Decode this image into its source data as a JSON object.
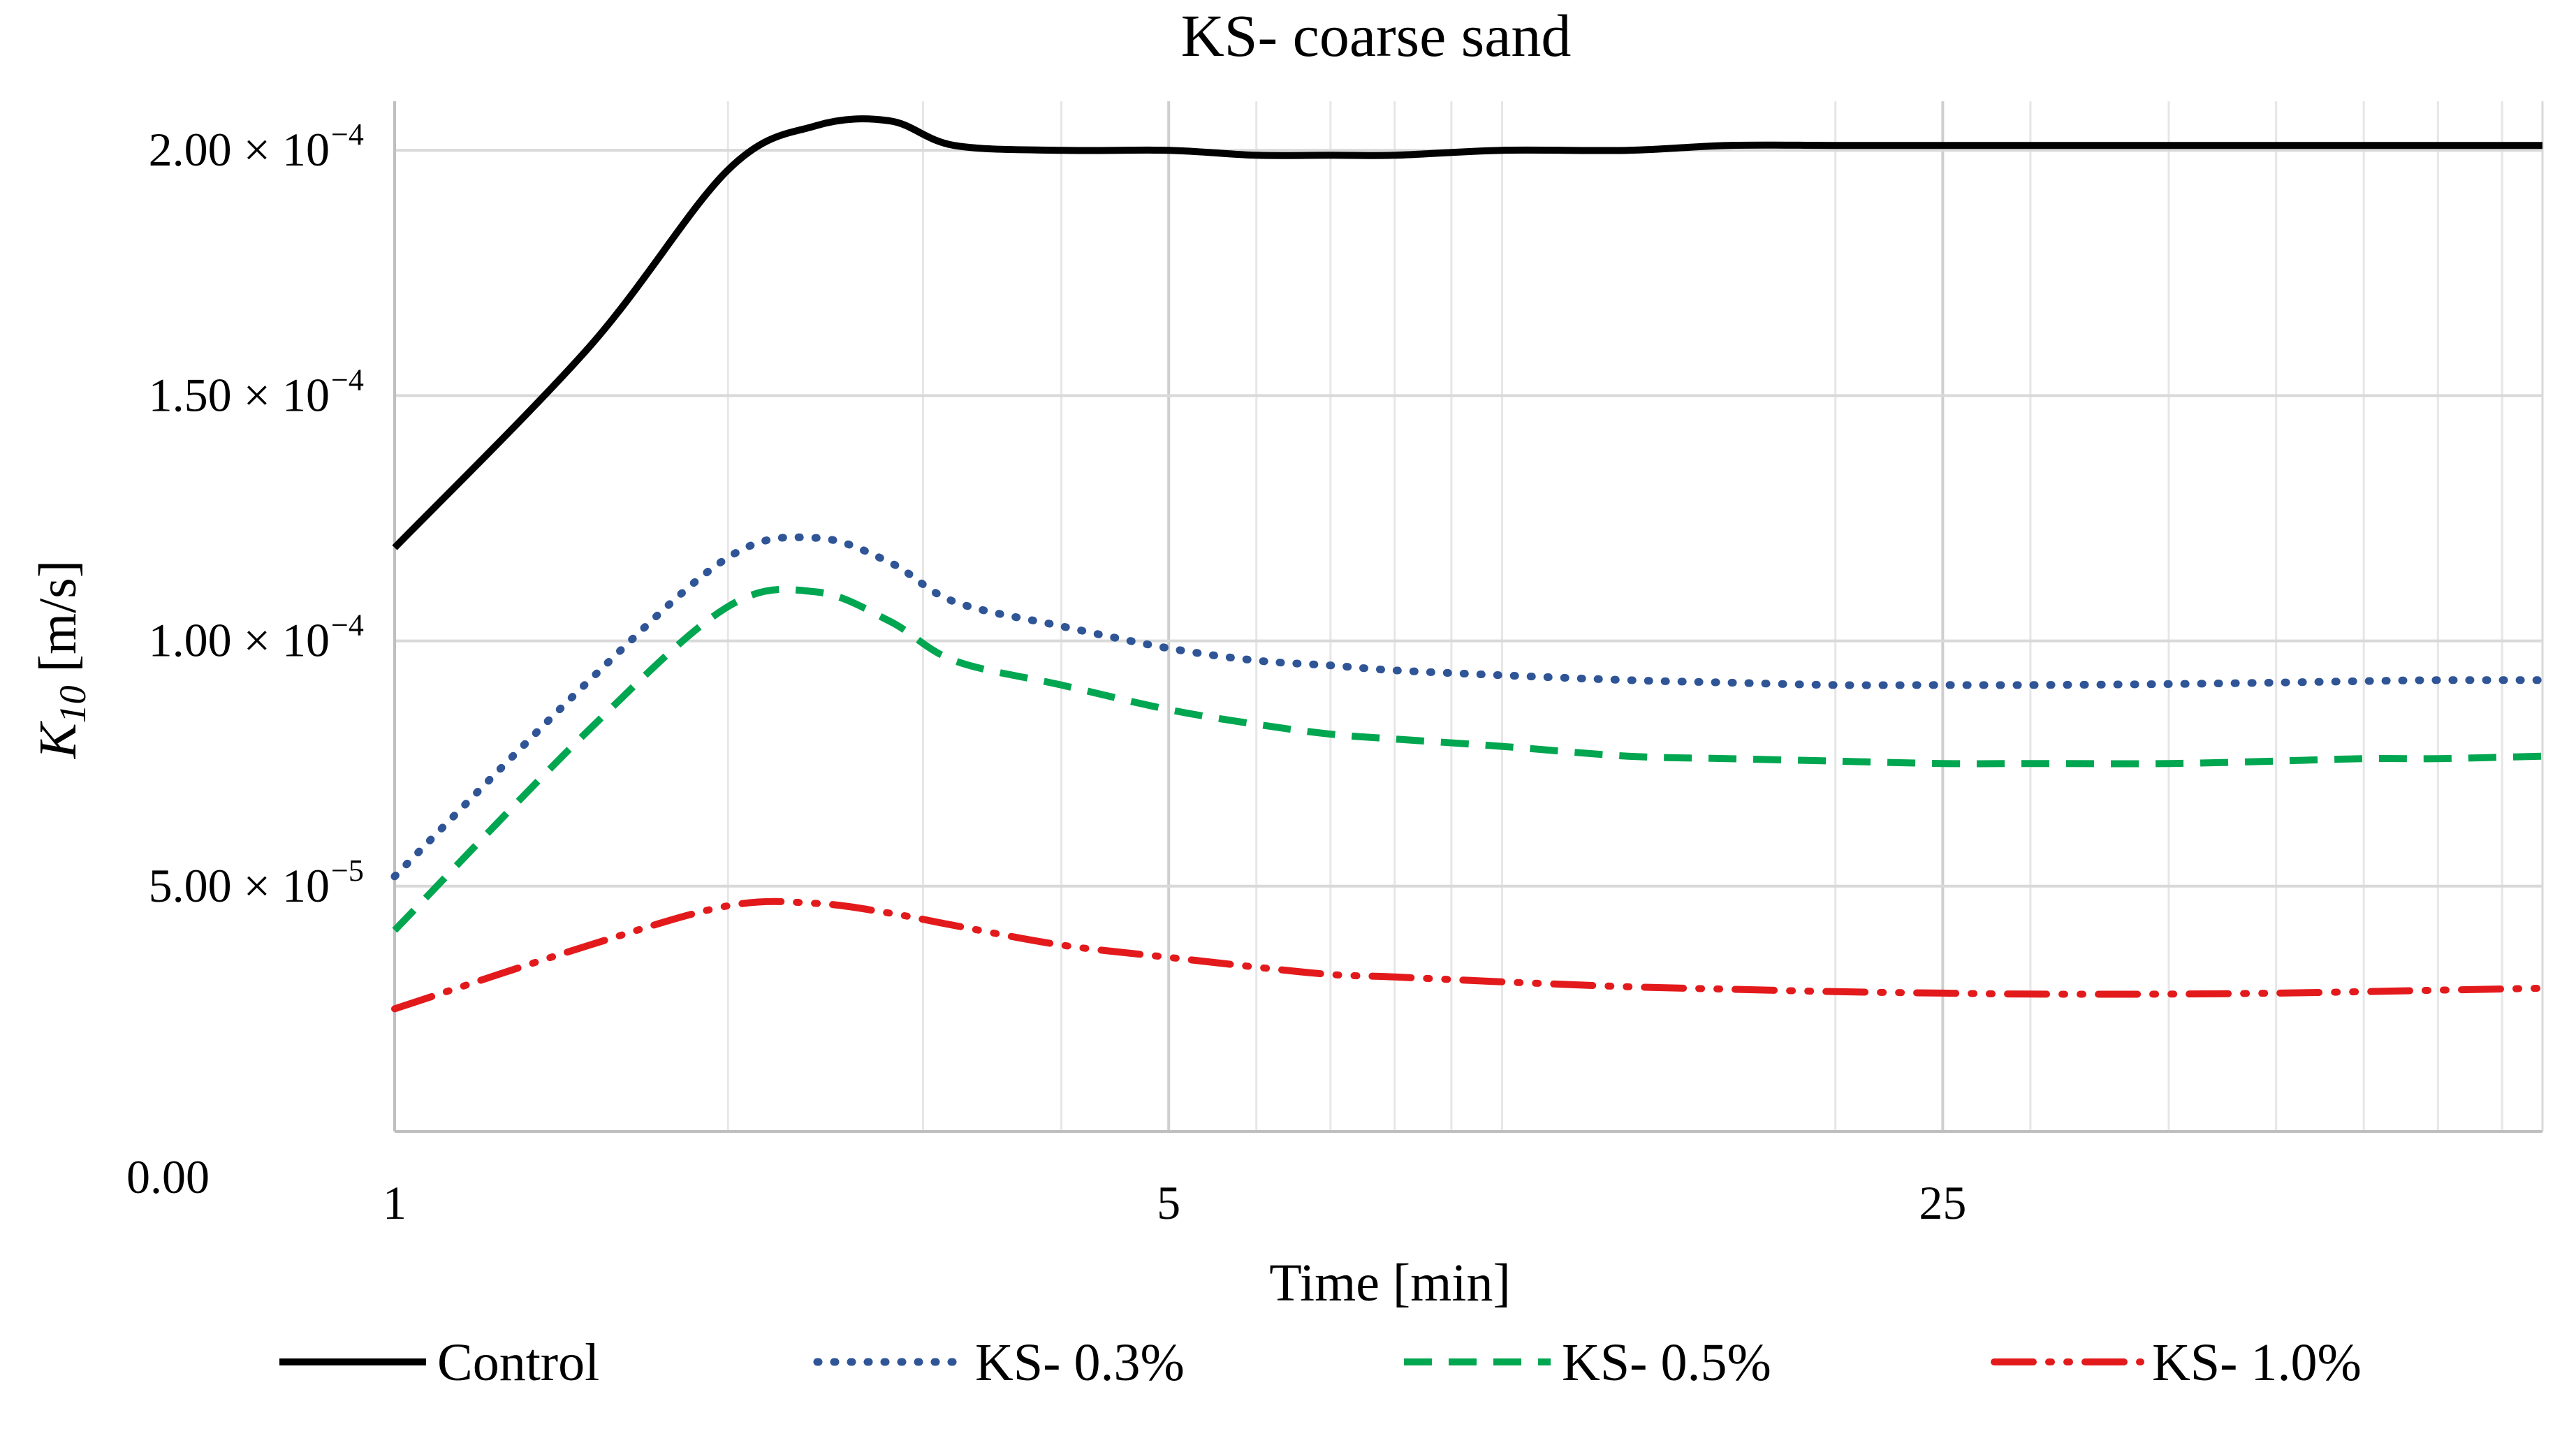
{
  "chart_data": {
    "type": "line",
    "title": "KS- coarse sand",
    "xlabel": "Time [min]",
    "ylabel": {
      "main": "K",
      "subscript": "10",
      "units": " [m/s]"
    },
    "xscale": "log",
    "xlim": [
      1,
      87
    ],
    "ylim": [
      0,
      0.00021
    ],
    "x_ticks": [
      {
        "value": 1,
        "label": "1"
      },
      {
        "value": 5,
        "label": "5"
      },
      {
        "value": 25,
        "label": "25"
      }
    ],
    "x_minor_ticks": [
      2,
      3,
      4,
      6,
      7,
      8,
      9,
      10,
      20,
      30,
      40,
      50,
      60,
      70,
      80
    ],
    "y_ticks": [
      {
        "value": 0,
        "mantissa": "0.00",
        "exp": ""
      },
      {
        "value": 5e-05,
        "mantissa": "5.00 × 10",
        "exp": "−5"
      },
      {
        "value": 0.0001,
        "mantissa": "1.00 × 10",
        "exp": "−4"
      },
      {
        "value": 0.00015,
        "mantissa": "1.50 × 10",
        "exp": "−4"
      },
      {
        "value": 0.0002,
        "mantissa": "2.00 × 10",
        "exp": "−4"
      }
    ],
    "grid": true,
    "legend_position": "bottom",
    "x": [
      1,
      1.5,
      2,
      2.4,
      2.8,
      3.2,
      4,
      5,
      6,
      7,
      8,
      10,
      13,
      16,
      20,
      25,
      30,
      40,
      50,
      60,
      70,
      87
    ],
    "series": [
      {
        "name": "Control",
        "color": "#000000",
        "style": "solid",
        "values": [
          0.000119,
          0.00016,
          0.000196,
          0.000205,
          0.000206,
          0.000201,
          0.0002,
          0.0002,
          0.000199,
          0.000199,
          0.000199,
          0.0002,
          0.0002,
          0.000201,
          0.000201,
          0.000201,
          0.000201,
          0.000201,
          0.000201,
          0.000201,
          0.000201,
          0.000201
        ]
      },
      {
        "name": "KS- 0.3%",
        "color": "#2f5597",
        "style": "dotted",
        "values": [
          5.2e-05,
          9.2e-05,
          0.000117,
          0.000121,
          0.000116,
          0.000108,
          0.000103,
          9.85e-05,
          9.6e-05,
          9.5e-05,
          9.4e-05,
          9.3e-05,
          9.2e-05,
          9.15e-05,
          9.1e-05,
          9.1e-05,
          9.1e-05,
          9.12e-05,
          9.15e-05,
          9.18e-05,
          9.2e-05,
          9.2e-05
        ]
      },
      {
        "name": "KS- 0.5%",
        "color": "#00a650",
        "style": "dashed",
        "values": [
          4.1e-05,
          8.2e-05,
          0.000107,
          0.00011,
          0.000104,
          9.6e-05,
          9.1e-05,
          8.6e-05,
          8.3e-05,
          8.1e-05,
          8e-05,
          7.85e-05,
          7.65e-05,
          7.6e-05,
          7.55e-05,
          7.5e-05,
          7.5e-05,
          7.5e-05,
          7.55e-05,
          7.6e-05,
          7.6e-05,
          7.65e-05
        ]
      },
      {
        "name": "KS- 1.0%",
        "color": "#e31a1c",
        "style": "dashdotdot",
        "values": [
          2.5e-05,
          3.8e-05,
          4.6e-05,
          4.65e-05,
          4.45e-05,
          4.2e-05,
          3.8e-05,
          3.55e-05,
          3.35e-05,
          3.2e-05,
          3.15e-05,
          3.05e-05,
          2.95e-05,
          2.9e-05,
          2.85e-05,
          2.82e-05,
          2.8e-05,
          2.8e-05,
          2.82e-05,
          2.85e-05,
          2.88e-05,
          2.92e-05
        ]
      }
    ]
  }
}
